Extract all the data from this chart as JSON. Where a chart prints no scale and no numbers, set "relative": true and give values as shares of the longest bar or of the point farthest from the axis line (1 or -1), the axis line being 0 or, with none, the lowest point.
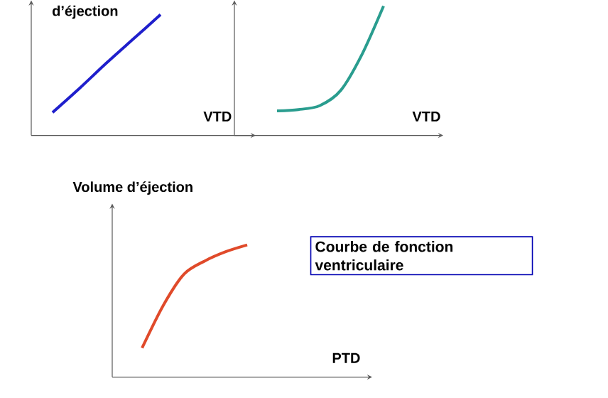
{
  "chart_data": [
    {
      "type": "line",
      "ylabel": "d’éjection",
      "xlabel": "VTD",
      "relative": true,
      "categories": [
        null,
        null,
        null,
        null,
        null
      ],
      "series": [
        {
          "color": "#1f1fcc",
          "values": [
            0.19,
            0.39,
            0.6,
            0.8,
            1.0
          ]
        }
      ]
    },
    {
      "type": "line",
      "xlabel": "VTD",
      "relative": true,
      "categories": [
        null,
        null,
        null,
        null,
        null,
        null
      ],
      "series": [
        {
          "color": "#2a9d8f",
          "values": [
            0.19,
            0.2,
            0.23,
            0.35,
            0.63,
            1.0
          ]
        }
      ]
    },
    {
      "type": "line",
      "ylabel": "Volume d’éjection",
      "xlabel": "PTD",
      "relative": true,
      "categories": [
        null,
        null,
        null,
        null,
        null,
        null
      ],
      "series": [
        {
          "color": "#e04a2a",
          "values": [
            0.22,
            0.54,
            0.78,
            0.88,
            0.95,
            1.0
          ]
        }
      ],
      "annotations": [
        "Courbe de fonction ventriculaire"
      ]
    }
  ]
}
